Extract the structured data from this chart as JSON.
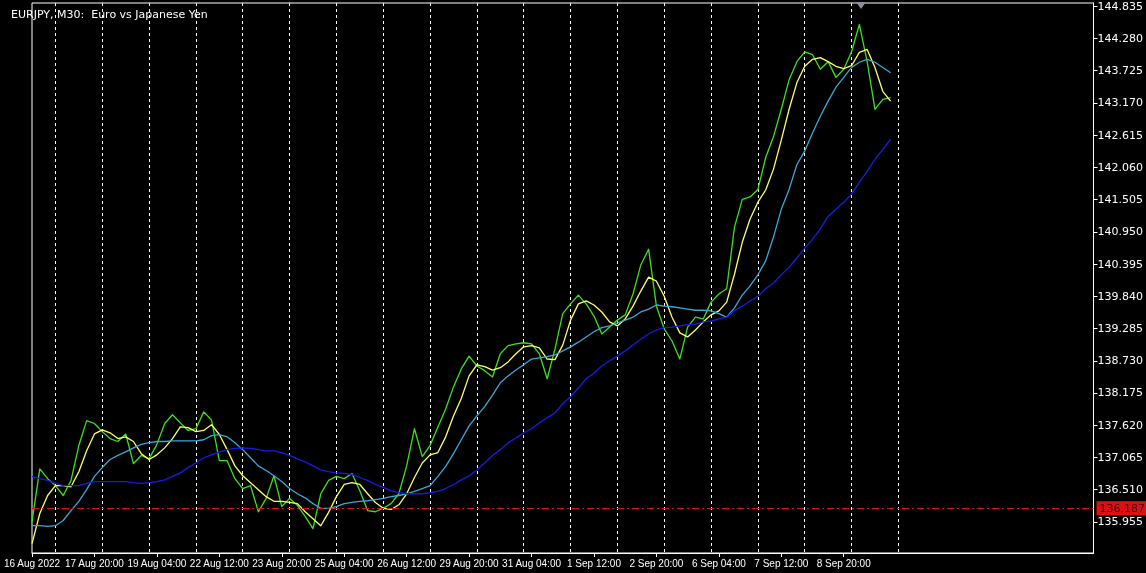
{
  "chart_data": {
    "type": "line",
    "title": "EURJPY, M30:  Euro vs Japanese Yen",
    "categories": [
      "16 Aug 2022",
      null,
      null,
      null,
      null,
      null,
      null,
      null,
      "17 Aug 20:00",
      null,
      null,
      null,
      null,
      null,
      null,
      null,
      "19 Aug 04:00",
      null,
      null,
      null,
      null,
      null,
      null,
      null,
      "22 Aug 12:00",
      null,
      null,
      null,
      null,
      null,
      null,
      null,
      "23 Aug 20:00",
      null,
      null,
      null,
      null,
      null,
      null,
      null,
      "25 Aug 04:00",
      null,
      null,
      null,
      null,
      null,
      null,
      null,
      "26 Aug 12:00",
      null,
      null,
      null,
      null,
      null,
      null,
      null,
      "29 Aug 20:00",
      null,
      null,
      null,
      null,
      null,
      null,
      null,
      "31 Aug 04:00",
      null,
      null,
      null,
      null,
      null,
      null,
      null,
      "1 Sep 12:00",
      null,
      null,
      null,
      null,
      null,
      null,
      null,
      "2 Sep 20:00",
      null,
      null,
      null,
      null,
      null,
      null,
      null,
      "6 Sep 04:00",
      null,
      null,
      null,
      null,
      null,
      null,
      null,
      "7 Sep 12:00",
      null,
      null,
      null,
      null,
      null,
      null,
      null,
      "8 Sep 20:00",
      null,
      null,
      null,
      null,
      null,
      null,
      null,
      null,
      null,
      null,
      null,
      null,
      null,
      null,
      null,
      null,
      null,
      null,
      null,
      null,
      null,
      null,
      null,
      null,
      null,
      null,
      null,
      null,
      null,
      null,
      null,
      null
    ],
    "series": [
      {
        "color": "#3ce01e",
        "values": [
          135.96,
          136.87,
          136.7,
          136.58,
          136.41,
          136.67,
          137.27,
          137.7,
          137.65,
          137.51,
          137.39,
          137.34,
          137.47,
          136.96,
          137.1,
          137.04,
          137.29,
          137.65,
          137.8,
          137.66,
          137.53,
          137.56,
          137.85,
          137.71,
          137.01,
          137.01,
          136.7,
          136.53,
          136.58,
          136.13,
          136.36,
          136.75,
          136.22,
          136.36,
          136.24,
          136.05,
          135.84,
          136.44,
          136.67,
          136.74,
          136.7,
          136.79,
          136.49,
          136.15,
          136.13,
          136.19,
          136.27,
          136.44,
          136.92,
          137.56,
          137.08,
          137.27,
          137.59,
          137.9,
          138.28,
          138.59,
          138.81,
          138.64,
          138.56,
          138.45,
          138.85,
          138.99,
          139.02,
          139.04,
          139.02,
          138.85,
          138.42,
          138.93,
          139.54,
          139.71,
          139.86,
          139.71,
          139.5,
          139.19,
          139.31,
          139.43,
          139.52,
          139.88,
          140.38,
          140.65,
          139.67,
          139.28,
          139.07,
          138.76,
          139.31,
          139.48,
          139.45,
          139.74,
          139.88,
          139.97,
          141.03,
          141.51,
          141.55,
          141.68,
          142.23,
          142.59,
          143.06,
          143.57,
          143.88,
          144.05,
          144.0,
          143.75,
          143.88,
          143.61,
          143.75,
          144.05,
          144.52,
          143.88,
          143.06,
          143.23,
          143.26,
          null,
          null,
          null,
          null,
          null,
          null,
          null,
          null,
          null,
          null,
          null,
          null,
          null,
          null,
          null,
          null,
          null,
          null,
          null,
          null,
          null,
          null,
          null,
          null,
          null,
          null
        ]
      },
      {
        "color": "#ffff66",
        "values": [
          135.58,
          136.1,
          136.41,
          136.58,
          136.58,
          136.56,
          136.82,
          137.18,
          137.47,
          137.54,
          137.49,
          137.39,
          137.42,
          137.34,
          137.13,
          137.03,
          137.11,
          137.23,
          137.39,
          137.59,
          137.58,
          137.51,
          137.53,
          137.63,
          137.46,
          137.2,
          136.92,
          136.75,
          136.63,
          136.51,
          136.39,
          136.31,
          136.31,
          136.29,
          136.27,
          136.13,
          136.01,
          135.89,
          136.12,
          136.39,
          136.6,
          136.63,
          136.6,
          136.44,
          136.29,
          136.19,
          136.17,
          136.25,
          136.44,
          136.72,
          136.97,
          137.11,
          137.15,
          137.42,
          137.78,
          138.08,
          138.47,
          138.66,
          138.63,
          138.57,
          138.61,
          138.71,
          138.85,
          138.97,
          138.99,
          138.95,
          138.76,
          138.75,
          139.0,
          139.43,
          139.71,
          139.76,
          139.69,
          139.57,
          139.4,
          139.33,
          139.45,
          139.67,
          139.93,
          140.17,
          140.1,
          139.84,
          139.48,
          139.21,
          139.14,
          139.26,
          139.4,
          139.52,
          139.59,
          139.74,
          140.22,
          140.77,
          141.17,
          141.46,
          141.67,
          142.03,
          142.53,
          143.06,
          143.52,
          143.8,
          143.92,
          143.95,
          143.88,
          143.8,
          143.76,
          143.81,
          144.04,
          144.09,
          143.78,
          143.37,
          143.2,
          null,
          null,
          null,
          null,
          null,
          null,
          null,
          null,
          null,
          null,
          null,
          null,
          null,
          null,
          null,
          null,
          null,
          null,
          null,
          null,
          null,
          null,
          null,
          null,
          null,
          null
        ]
      },
      {
        "color": "#3aa8d8",
        "values": [
          135.89,
          135.89,
          135.88,
          135.89,
          135.98,
          136.15,
          136.31,
          136.51,
          136.74,
          136.89,
          137.03,
          137.1,
          137.16,
          137.23,
          137.29,
          137.32,
          137.34,
          137.34,
          137.35,
          137.35,
          137.35,
          137.35,
          137.37,
          137.44,
          137.46,
          137.42,
          137.32,
          137.2,
          137.06,
          136.92,
          136.84,
          136.75,
          136.65,
          136.53,
          136.44,
          136.37,
          136.27,
          136.19,
          136.19,
          136.22,
          136.27,
          136.29,
          136.31,
          136.32,
          136.34,
          136.36,
          136.39,
          136.41,
          136.44,
          136.48,
          136.53,
          136.58,
          136.74,
          136.91,
          137.13,
          137.37,
          137.61,
          137.78,
          137.94,
          138.14,
          138.35,
          138.47,
          138.57,
          138.66,
          138.76,
          138.78,
          138.8,
          138.83,
          138.9,
          138.97,
          139.05,
          139.14,
          139.23,
          139.3,
          139.33,
          139.38,
          139.43,
          139.48,
          139.57,
          139.62,
          139.69,
          139.67,
          139.66,
          139.64,
          139.62,
          139.6,
          139.6,
          139.59,
          139.54,
          139.48,
          139.64,
          139.86,
          140.02,
          140.21,
          140.45,
          140.86,
          141.34,
          141.68,
          142.11,
          142.34,
          142.65,
          142.94,
          143.2,
          143.44,
          143.61,
          143.78,
          143.87,
          143.92,
          143.87,
          143.78,
          143.69,
          null,
          null,
          null,
          null,
          null,
          null,
          null,
          null,
          null,
          null,
          null,
          null,
          null,
          null,
          null,
          null,
          null,
          null,
          null,
          null,
          null,
          null,
          null,
          null,
          null,
          null
        ]
      },
      {
        "color": "#1a1ae6",
        "values": [
          136.74,
          136.7,
          136.67,
          136.62,
          136.58,
          136.58,
          136.58,
          136.62,
          136.65,
          136.65,
          136.65,
          136.65,
          136.65,
          136.63,
          136.62,
          136.63,
          136.65,
          136.68,
          136.74,
          136.8,
          136.89,
          136.97,
          137.06,
          137.11,
          137.16,
          137.2,
          137.22,
          137.23,
          137.22,
          137.2,
          137.18,
          137.18,
          137.15,
          137.1,
          137.04,
          136.99,
          136.92,
          136.85,
          136.82,
          136.8,
          136.79,
          136.77,
          136.72,
          136.67,
          136.6,
          136.55,
          136.49,
          136.46,
          136.44,
          136.44,
          136.44,
          136.46,
          136.48,
          136.53,
          136.6,
          136.68,
          136.75,
          136.85,
          136.97,
          137.1,
          137.2,
          137.32,
          137.4,
          137.49,
          137.56,
          137.66,
          137.75,
          137.83,
          137.99,
          138.11,
          138.26,
          138.42,
          138.52,
          138.64,
          138.73,
          138.81,
          138.9,
          139.0,
          139.1,
          139.19,
          139.26,
          139.3,
          139.31,
          139.33,
          139.35,
          139.36,
          139.4,
          139.41,
          139.45,
          139.48,
          139.59,
          139.67,
          139.76,
          139.84,
          139.97,
          140.07,
          140.21,
          140.34,
          140.5,
          140.67,
          140.82,
          141.0,
          141.22,
          141.34,
          141.46,
          141.6,
          141.8,
          141.99,
          142.2,
          142.37,
          142.54,
          null,
          null,
          null,
          null,
          null,
          null,
          null,
          null,
          null,
          null,
          null,
          null,
          null,
          null,
          null,
          null,
          null,
          null,
          null,
          null,
          null,
          null,
          null,
          null,
          null,
          null
        ]
      }
    ],
    "ylim": [
      135.42,
      144.89
    ],
    "yticks": [
      {
        "value": 135.955,
        "label": "135.955"
      },
      {
        "value": 136.51,
        "label": "136.510"
      },
      {
        "value": 137.065,
        "label": "137.065"
      },
      {
        "value": 137.62,
        "label": "137.620"
      },
      {
        "value": 138.175,
        "label": "138.175"
      },
      {
        "value": 138.73,
        "label": "138.730"
      },
      {
        "value": 139.285,
        "label": "139.285"
      },
      {
        "value": 139.84,
        "label": "139.840"
      },
      {
        "value": 140.395,
        "label": "140.395"
      },
      {
        "value": 140.95,
        "label": "140.950"
      },
      {
        "value": 141.505,
        "label": "141.505"
      },
      {
        "value": 142.06,
        "label": "142.060"
      },
      {
        "value": 142.615,
        "label": "142.615"
      },
      {
        "value": 143.17,
        "label": "143.170"
      },
      {
        "value": 143.725,
        "label": "143.725"
      },
      {
        "value": 144.28,
        "label": "144.280"
      },
      {
        "value": 144.835,
        "label": "144.835"
      }
    ],
    "grid": "x",
    "marker": "none",
    "ref_lines": [
      {
        "axis": "y",
        "value": 136.187,
        "label": "136.187",
        "color": "#e01010",
        "line_style": "dashed"
      }
    ]
  }
}
